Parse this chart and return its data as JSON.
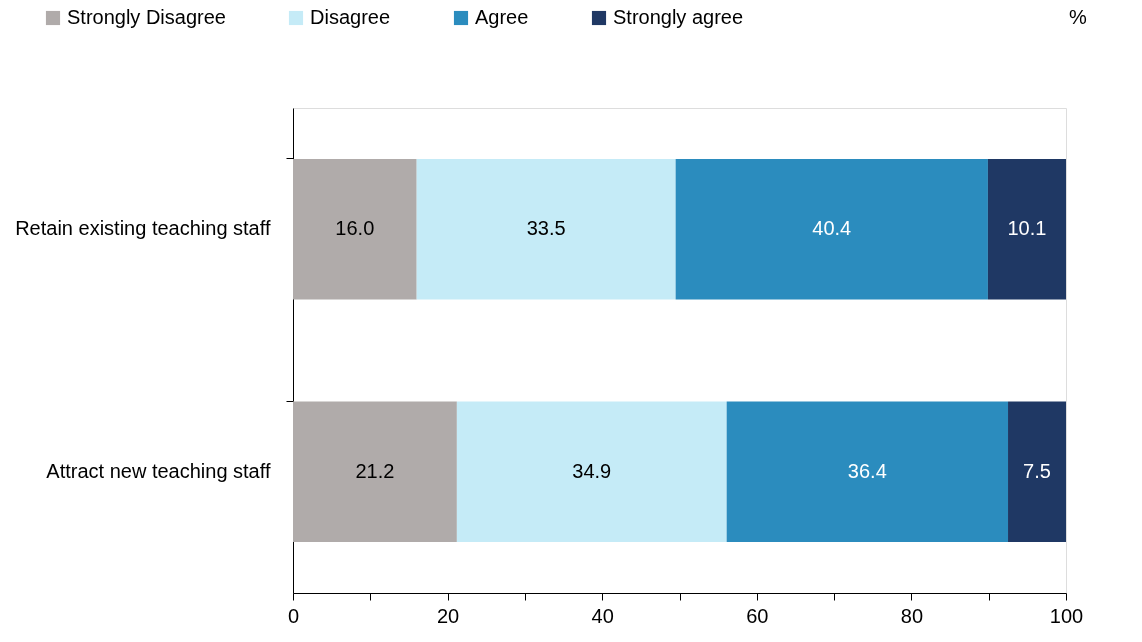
{
  "chart_data": {
    "type": "bar",
    "orientation": "horizontal",
    "stacked": true,
    "legend": "top",
    "grid": false,
    "categories": [
      "Retain existing teaching staff",
      "Attract new teaching staff"
    ],
    "series": [
      {
        "name": "Strongly Disagree",
        "color": "#b0abaa",
        "values": [
          16.0,
          21.2
        ],
        "value_labels": [
          "16.0",
          "21.2"
        ]
      },
      {
        "name": "Disagree",
        "color": "#c5ebf7",
        "values": [
          33.5,
          34.9
        ],
        "value_labels": [
          "33.5",
          "34.9"
        ]
      },
      {
        "name": "Agree",
        "color": "#2b8cbe",
        "values": [
          40.4,
          36.4
        ],
        "value_labels": [
          "40.4",
          "36.4"
        ]
      },
      {
        "name": "Strongly agree",
        "color": "#1f3864",
        "values": [
          10.1,
          7.5
        ],
        "value_labels": [
          "10.1",
          "7.5"
        ]
      }
    ],
    "xlim": [
      0,
      100
    ],
    "xticks": [
      0,
      {
        "value": 10,
        "label": null
      },
      20,
      {
        "value": 30,
        "label": null
      },
      40,
      {
        "value": 50,
        "label": null
      },
      60,
      {
        "value": 70,
        "label": null
      },
      80,
      {
        "value": 90,
        "label": null
      },
      100
    ],
    "annotations": [
      "%"
    ]
  }
}
